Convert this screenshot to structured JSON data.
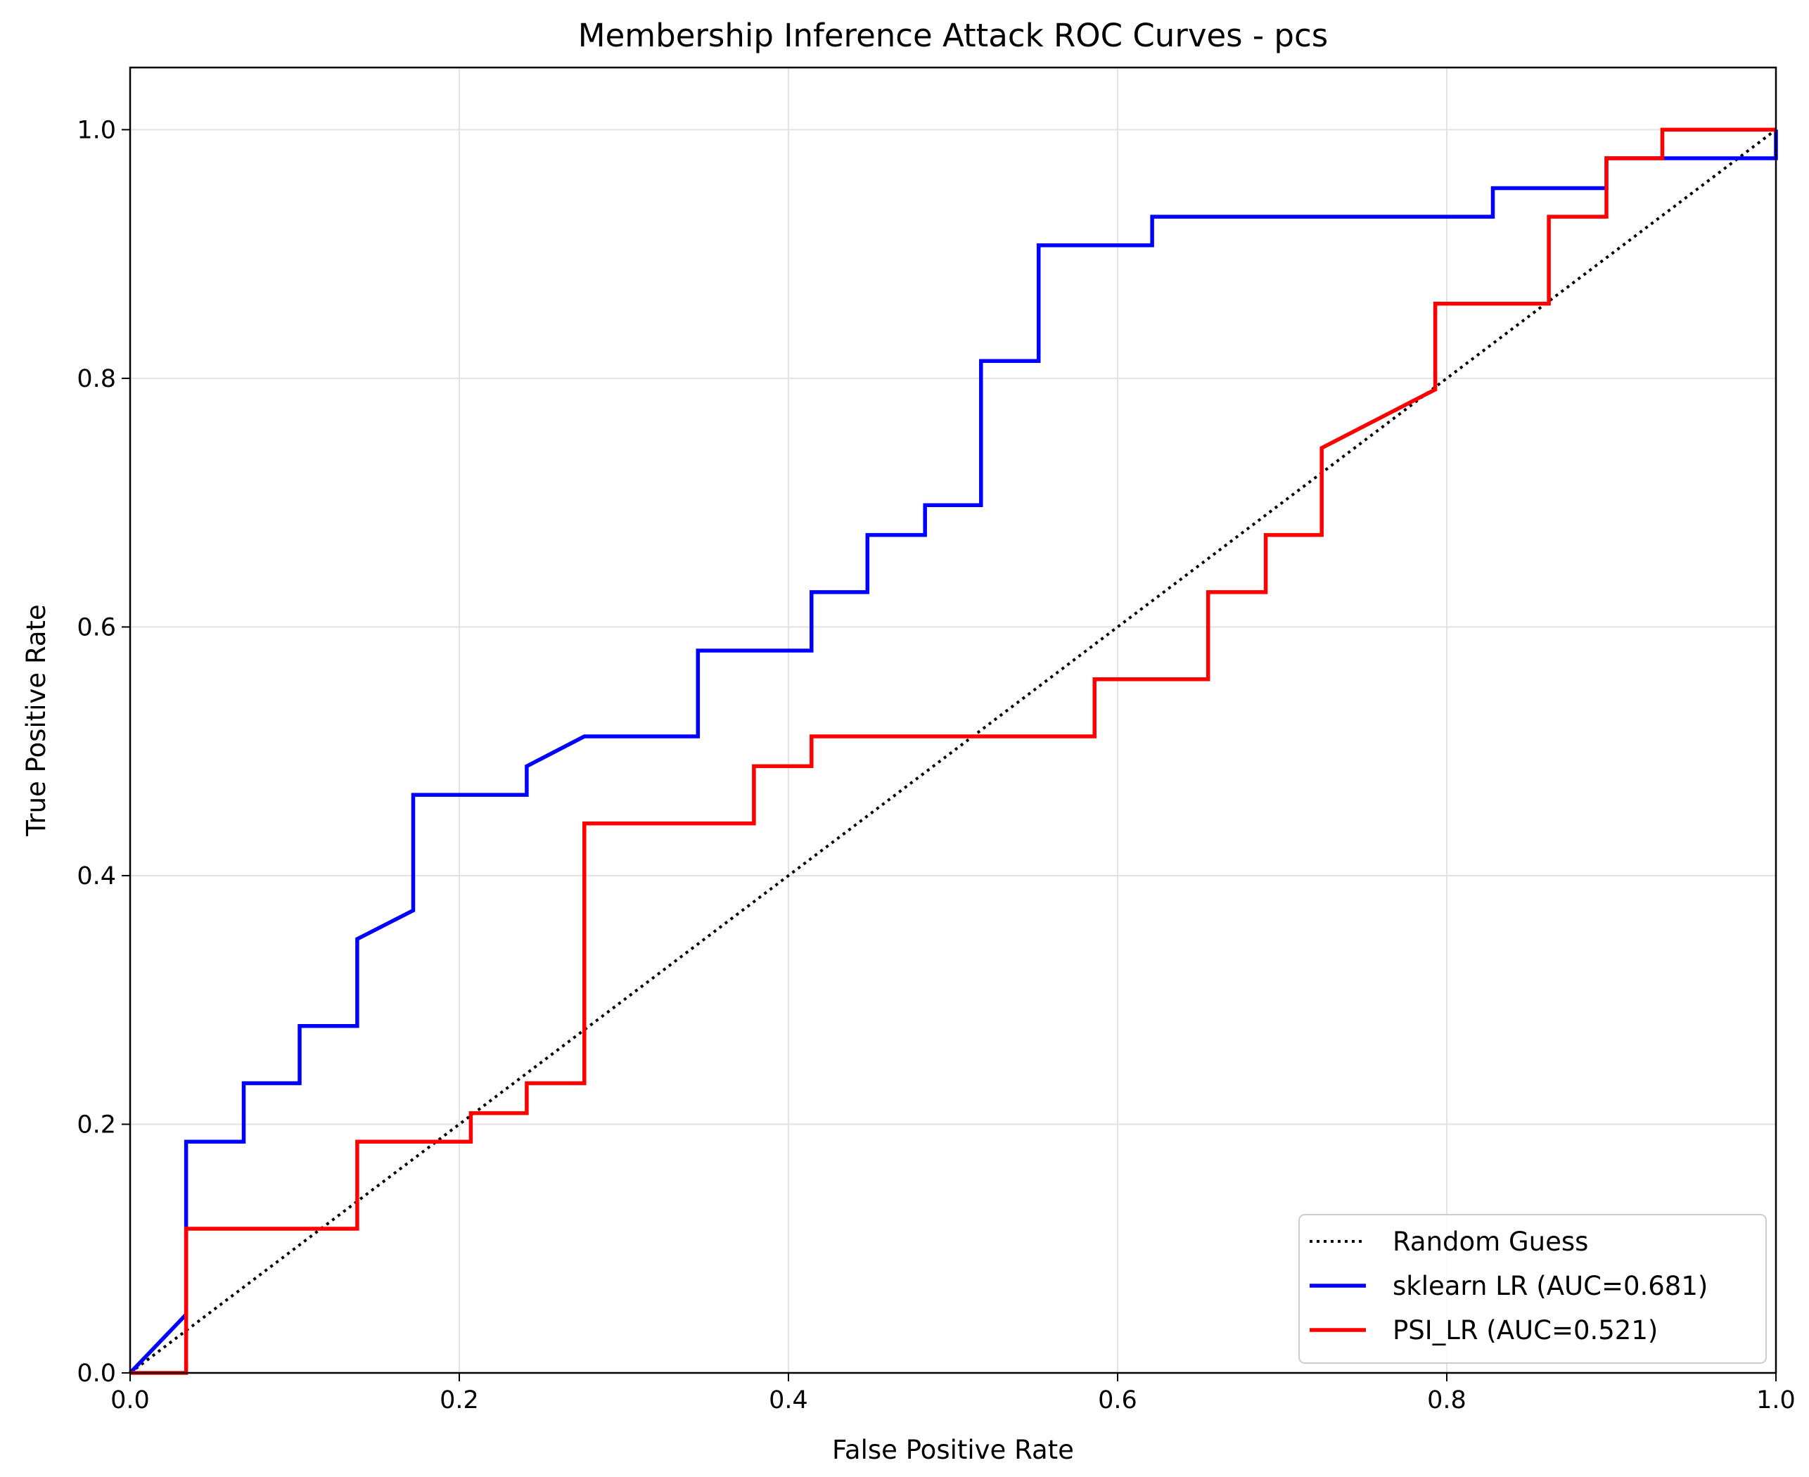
{
  "chart_data": {
    "type": "line",
    "title": "Membership Inference Attack ROC Curves - pcs",
    "xlabel": "False Positive Rate",
    "ylabel": "True Positive Rate",
    "xlim": [
      0,
      1
    ],
    "ylim": [
      0,
      1.05
    ],
    "xticks": [
      0.0,
      0.2,
      0.4,
      0.6,
      0.8,
      1.0
    ],
    "yticks": [
      0.0,
      0.2,
      0.4,
      0.6,
      0.8,
      1.0
    ],
    "xtick_labels": [
      "0.0",
      "0.2",
      "0.4",
      "0.6",
      "0.8",
      "1.0"
    ],
    "ytick_labels": [
      "0.0",
      "0.2",
      "0.4",
      "0.6",
      "0.8",
      "1.0"
    ],
    "grid": true,
    "legend_position": "lower-right",
    "series": [
      {
        "name": "Random Guess",
        "color": "#000000",
        "style": "dotted",
        "x": [
          0,
          1
        ],
        "y": [
          0,
          1
        ]
      },
      {
        "name": "sklearn LR (AUC=0.681)",
        "color": "#0000ff",
        "style": "solid",
        "x": [
          0,
          0.034,
          0.034,
          0.069,
          0.069,
          0.103,
          0.103,
          0.138,
          0.138,
          0.172,
          0.172,
          0.241,
          0.241,
          0.276,
          0.345,
          0.345,
          0.414,
          0.414,
          0.448,
          0.448,
          0.483,
          0.483,
          0.517,
          0.517,
          0.552,
          0.552,
          0.621,
          0.621,
          0.828,
          0.828,
          0.897,
          0.897,
          0.931,
          0.931,
          1.0,
          1.0
        ],
        "y": [
          0,
          0.047,
          0.186,
          0.186,
          0.233,
          0.233,
          0.279,
          0.279,
          0.349,
          0.372,
          0.465,
          0.465,
          0.488,
          0.512,
          0.512,
          0.581,
          0.581,
          0.628,
          0.628,
          0.674,
          0.674,
          0.698,
          0.698,
          0.814,
          0.814,
          0.907,
          0.907,
          0.93,
          0.93,
          0.953,
          0.953,
          0.977,
          0.977,
          0.977,
          0.977,
          1.0
        ]
      },
      {
        "name": "PSI_LR (AUC=0.521)",
        "color": "#ff0000",
        "style": "solid",
        "x": [
          0,
          0.034,
          0.034,
          0.138,
          0.138,
          0.207,
          0.207,
          0.241,
          0.241,
          0.276,
          0.276,
          0.379,
          0.379,
          0.414,
          0.414,
          0.586,
          0.586,
          0.655,
          0.655,
          0.69,
          0.69,
          0.724,
          0.724,
          0.793,
          0.793,
          0.862,
          0.862,
          0.897,
          0.897,
          0.931,
          0.931,
          1.0
        ],
        "y": [
          0,
          0,
          0.116,
          0.116,
          0.186,
          0.186,
          0.209,
          0.209,
          0.233,
          0.233,
          0.442,
          0.442,
          0.488,
          0.488,
          0.512,
          0.512,
          0.558,
          0.558,
          0.628,
          0.628,
          0.674,
          0.674,
          0.744,
          0.791,
          0.86,
          0.86,
          0.93,
          0.93,
          0.977,
          0.977,
          1.0,
          1.0
        ]
      }
    ]
  }
}
